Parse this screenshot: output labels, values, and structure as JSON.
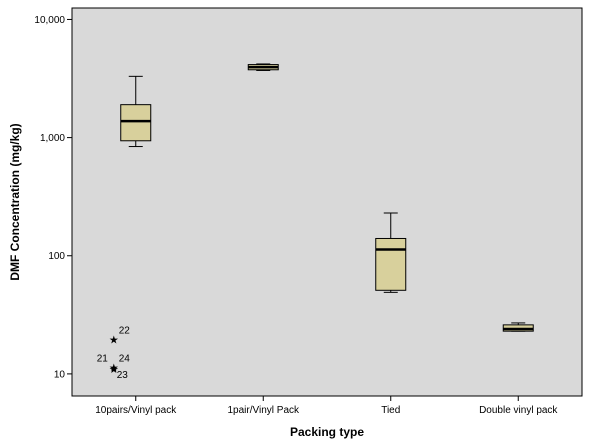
{
  "chart_data": {
    "type": "box",
    "xlabel": "Packing type",
    "ylabel": "DMF Concentration (mg/kg)",
    "y_scale": "log",
    "ylim": [
      6.5,
      12500
    ],
    "yticks": [
      10,
      100,
      1000,
      10000
    ],
    "ytick_labels": [
      "10",
      "100",
      "1,000",
      "10,000"
    ],
    "grid": false,
    "categories": [
      "10pairs/Vinyl pack",
      "1pair/Vinyl Pack",
      "Tied",
      "Double vinyl pack"
    ],
    "boxes": [
      {
        "category": "10pairs/Vinyl pack",
        "whisker_low": 840,
        "q1": 940,
        "median": 1380,
        "q3": 1900,
        "whisker_high": 3300
      },
      {
        "category": "1pair/Vinyl Pack",
        "whisker_low": 3700,
        "q1": 3750,
        "median": 3950,
        "q3": 4150,
        "whisker_high": 4200
      },
      {
        "category": "Tied",
        "whisker_low": 49,
        "q1": 51,
        "median": 113,
        "q3": 140,
        "whisker_high": 230
      },
      {
        "category": "Double vinyl pack",
        "whisker_low": 23,
        "q1": 23,
        "median": 24,
        "q3": 26,
        "whisker_high": 27
      }
    ],
    "outliers": [
      {
        "category": "10pairs/Vinyl pack",
        "value": 19.5,
        "label": "22"
      },
      {
        "category": "10pairs/Vinyl pack",
        "value": 11.3,
        "label": "21"
      },
      {
        "category": "10pairs/Vinyl pack",
        "value": 11.3,
        "label": "24"
      },
      {
        "category": "10pairs/Vinyl pack",
        "value": 11.0,
        "label": "23"
      }
    ],
    "colors": {
      "plot_background": "#d9d9d9",
      "box_fill": "#d8d09c",
      "box_stroke": "#000000",
      "axis": "#000000"
    }
  }
}
